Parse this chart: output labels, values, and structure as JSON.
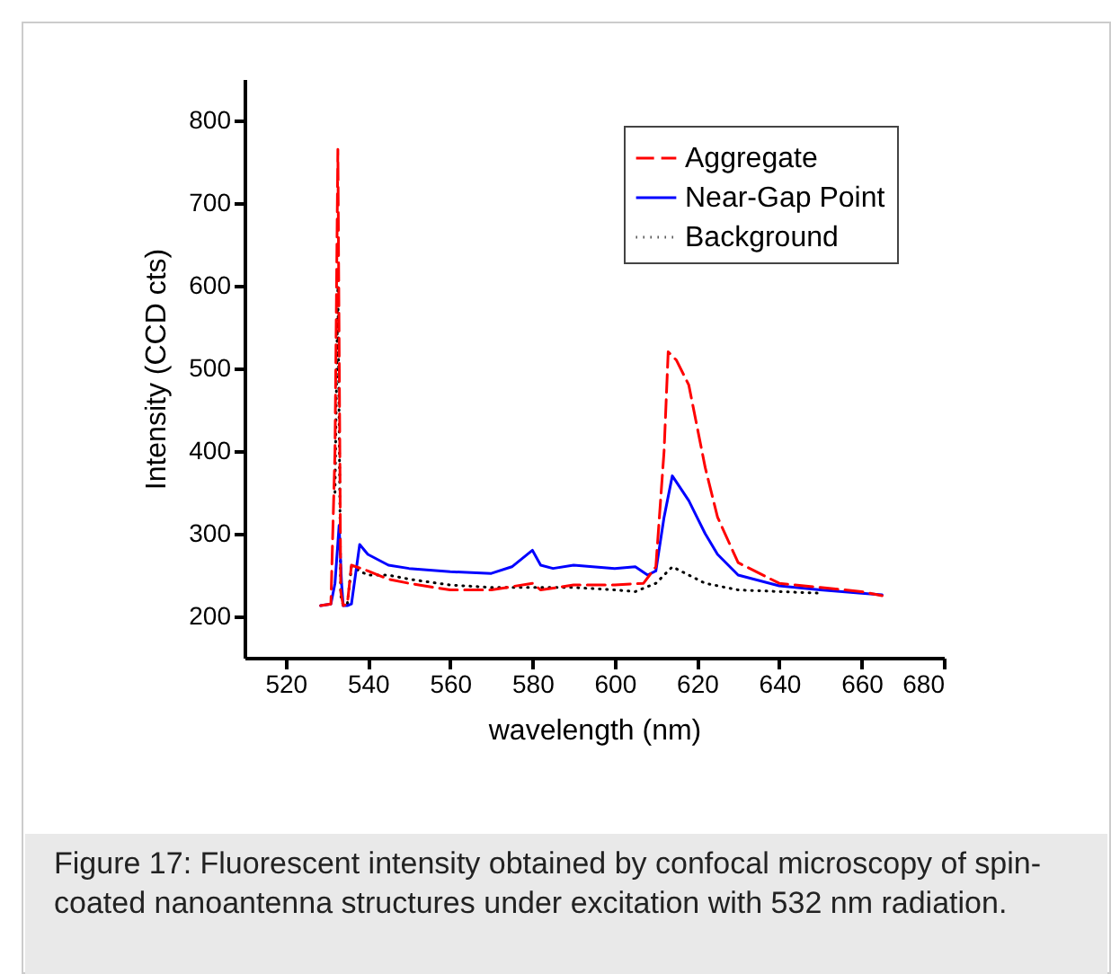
{
  "chart_data": {
    "type": "line",
    "xlabel": "wavelength (nm)",
    "ylabel": "Intensity (CCD cts)",
    "xlim": [
      510,
      680
    ],
    "xticks": [
      520,
      540,
      560,
      580,
      600,
      620,
      640,
      660,
      680
    ],
    "ylim": [
      150,
      850
    ],
    "yticks": [
      200,
      300,
      400,
      500,
      600,
      700,
      800
    ],
    "grid": false,
    "legend": "top right",
    "annotations": [
      "Figure 17: Fluorescent intensity obtained by confocal microscopy of spin-coated nanoantenna structures under excitation with 532 nm radiation."
    ],
    "series": [
      {
        "name": "Aggregate",
        "color": "#ff0000",
        "line_style": "dashed",
        "x": [
          528.5,
          531,
          532,
          532.7,
          533.4,
          534,
          535,
          536,
          540,
          545,
          550,
          560,
          570,
          580,
          582,
          590,
          600,
          607,
          610,
          612,
          613,
          615,
          618,
          620,
          622,
          625,
          630,
          640,
          650,
          660,
          665
        ],
        "values": [
          213,
          215,
          400,
          765,
          230,
          213,
          215,
          262,
          255,
          245,
          240,
          232,
          232,
          240,
          232,
          238,
          238,
          240,
          260,
          400,
          520,
          510,
          480,
          430,
          380,
          320,
          265,
          240,
          235,
          230,
          225
        ]
      },
      {
        "name": "Near-Gap Point",
        "color": "#0000ff",
        "line_style": "solid",
        "x": [
          528.5,
          531,
          532,
          533,
          533.6,
          534,
          535,
          536,
          538,
          540,
          545,
          550,
          560,
          570,
          575,
          580,
          582,
          585,
          590,
          600,
          605,
          608,
          610,
          612,
          614,
          616,
          618,
          620,
          622,
          625,
          630,
          640,
          650,
          660,
          665
        ],
        "values": [
          213,
          215,
          240,
          310,
          240,
          213,
          213,
          215,
          287,
          275,
          262,
          258,
          254,
          252,
          260,
          280,
          262,
          258,
          262,
          258,
          260,
          250,
          255,
          320,
          370,
          355,
          340,
          320,
          300,
          275,
          250,
          237,
          232,
          228,
          226
        ]
      },
      {
        "name": "Background",
        "color": "#000000",
        "line_style": "dotted",
        "x": [
          532,
          532.7,
          533.4,
          534,
          535,
          536,
          540,
          545,
          550,
          560,
          570,
          580,
          590,
          600,
          605,
          610,
          614,
          618,
          622,
          630,
          640,
          650
        ],
        "values": [
          350,
          600,
          225,
          213,
          215,
          260,
          250,
          250,
          245,
          238,
          235,
          235,
          235,
          232,
          230,
          240,
          260,
          250,
          240,
          232,
          230,
          228
        ]
      }
    ]
  }
}
